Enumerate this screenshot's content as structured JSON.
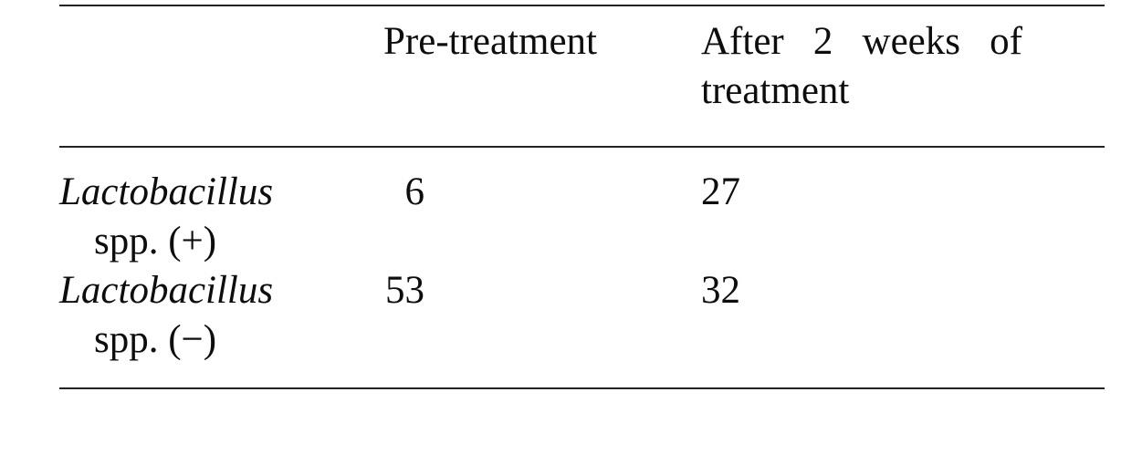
{
  "table": {
    "style": {
      "rule_color": "#222222",
      "text_color": "#0d0d0d"
    },
    "header": {
      "row_label_column": "",
      "pre_treatment": "Pre-treatment",
      "after_treatment": "After 2 weeks of treatment"
    },
    "rows": [
      {
        "genus": "Lactobacillus",
        "suffix": "spp. (+)",
        "pre_treatment": "6",
        "after_treatment": "27"
      },
      {
        "genus": "Lactobacillus",
        "suffix": "spp. (−)",
        "pre_treatment": "53",
        "after_treatment": "32"
      }
    ]
  }
}
